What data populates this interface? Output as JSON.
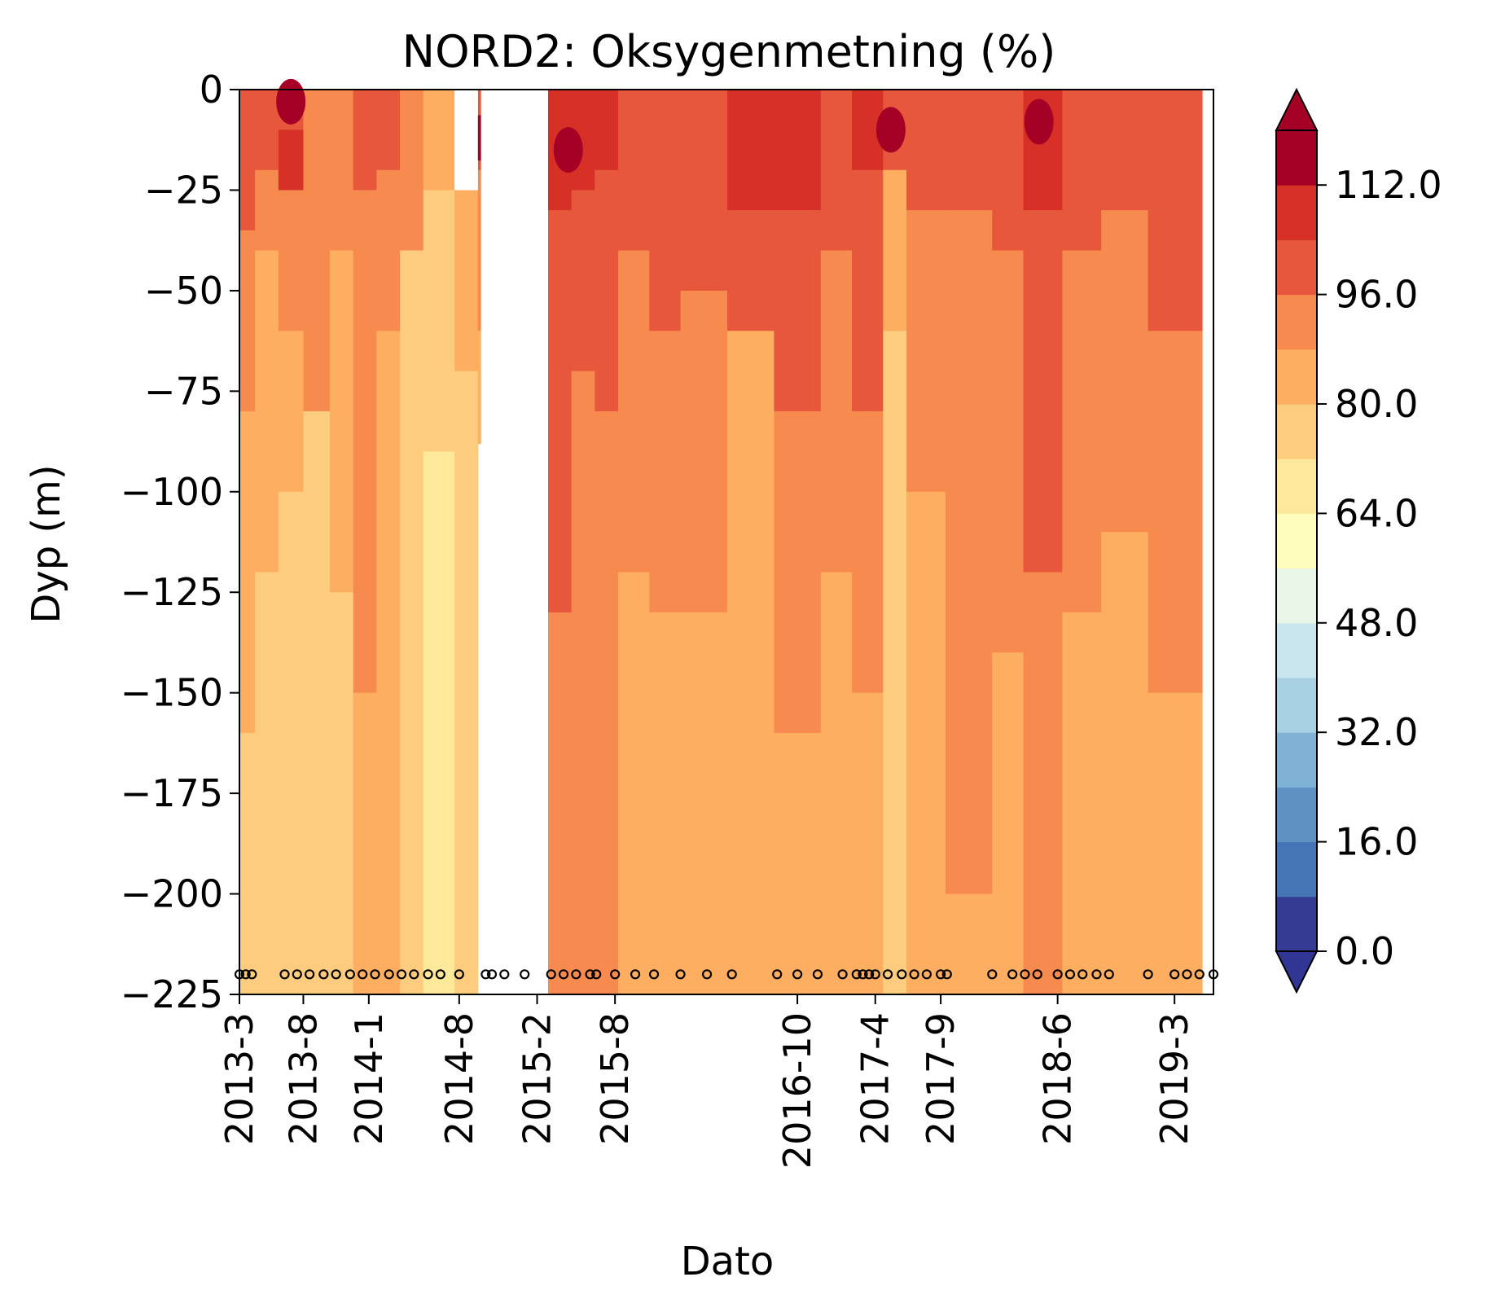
{
  "chart_data": {
    "type": "contour",
    "title": "NORD2: Oksygenmetning (%)",
    "xlabel": "Dato",
    "ylabel": "Dyp (m)",
    "ylim": [
      -225,
      0
    ],
    "y_ticks": [
      "0",
      "−25",
      "−50",
      "−75",
      "−100",
      "−125",
      "−150",
      "−175",
      "−200",
      "−225"
    ],
    "y_tick_values": [
      0,
      -25,
      -50,
      -75,
      -100,
      -125,
      -150,
      -175,
      -200,
      -225
    ],
    "x_ticks": [
      "2013-3",
      "2013-8",
      "2014-1",
      "2014-8",
      "2015-2",
      "2015-8",
      "2016-10",
      "2017-4",
      "2017-9",
      "2018-6",
      "2019-3"
    ],
    "x_tick_values": [
      2013.17,
      2013.58,
      2014.0,
      2014.58,
      2015.08,
      2015.58,
      2016.75,
      2017.25,
      2017.67,
      2018.42,
      2019.17
    ],
    "xlim": [
      2013.17,
      2019.42
    ],
    "sample_marker_depth": -220,
    "sample_dates": [
      2013.17,
      2013.21,
      2013.25,
      2013.46,
      2013.54,
      2013.62,
      2013.71,
      2013.79,
      2013.88,
      2013.96,
      2014.04,
      2014.13,
      2014.21,
      2014.29,
      2014.38,
      2014.46,
      2014.58,
      2014.75,
      2014.79,
      2014.87,
      2015.0,
      2015.17,
      2015.25,
      2015.33,
      2015.42,
      2015.46,
      2015.58,
      2015.71,
      2015.83,
      2016.0,
      2016.17,
      2016.33,
      2016.62,
      2016.75,
      2016.88,
      2017.04,
      2017.13,
      2017.17,
      2017.21,
      2017.25,
      2017.33,
      2017.42,
      2017.5,
      2017.58,
      2017.67,
      2017.71,
      2018.0,
      2018.13,
      2018.21,
      2018.29,
      2018.42,
      2018.5,
      2018.58,
      2018.67,
      2018.75,
      2019.0,
      2019.17,
      2019.25,
      2019.33,
      2019.42
    ],
    "gaps": [
      {
        "x_start": 2014.72,
        "x_end": 2014.9,
        "y_top": 0,
        "y_bottom": -225
      },
      {
        "x_start": 2014.9,
        "x_end": 2015.15,
        "y_top": 0,
        "y_bottom": -225
      },
      {
        "x_start": 2014.55,
        "x_end": 2014.7,
        "y_top": 0,
        "y_bottom": -25
      },
      {
        "x_start": 2019.35,
        "x_end": 2019.42,
        "y_top": 0,
        "y_bottom": -225
      }
    ],
    "colorbar": {
      "levels": [
        0,
        8,
        16,
        24,
        32,
        40,
        48,
        56,
        64,
        72,
        80,
        88,
        96,
        104,
        112
      ],
      "tick_labels": [
        "0.0",
        "16.0",
        "32.0",
        "48.0",
        "64.0",
        "80.0",
        "96.0",
        "112.0"
      ],
      "tick_values": [
        0,
        16,
        32,
        48,
        64,
        80,
        96,
        112
      ],
      "extend": "both",
      "colors": [
        "#353a92",
        "#4575b4",
        "#5f92c3",
        "#80b2d6",
        "#a8d1e4",
        "#c9e6ef",
        "#e9f5e6",
        "#fefcbb",
        "#fee99a",
        "#fdcc7e",
        "#fdae61",
        "#f78b4f",
        "#e6573c",
        "#d73027",
        "#a50026"
      ],
      "under_color": "#313695",
      "over_color": "#a50026"
    },
    "columns": [
      {
        "x_start": 2013.17,
        "x_end": 2013.27,
        "bands": [
          [
            0,
            -5,
            96
          ],
          [
            -5,
            -35,
            96
          ],
          [
            -35,
            -80,
            88
          ],
          [
            -80,
            -160,
            80
          ],
          [
            -160,
            -225,
            72
          ]
        ]
      },
      {
        "x_start": 2013.27,
        "x_end": 2013.42,
        "bands": [
          [
            0,
            -20,
            96
          ],
          [
            -20,
            -40,
            88
          ],
          [
            -40,
            -120,
            80
          ],
          [
            -120,
            -225,
            72
          ]
        ]
      },
      {
        "x_start": 2013.42,
        "x_end": 2013.58,
        "bands": [
          [
            0,
            -10,
            96
          ],
          [
            -10,
            -25,
            104
          ],
          [
            -25,
            -60,
            88
          ],
          [
            -60,
            -100,
            80
          ],
          [
            -100,
            -225,
            72
          ]
        ]
      },
      {
        "x_start": 2013.58,
        "x_end": 2013.75,
        "bands": [
          [
            0,
            -30,
            88
          ],
          [
            -30,
            -80,
            88
          ],
          [
            -80,
            -225,
            72
          ]
        ]
      },
      {
        "x_start": 2013.75,
        "x_end": 2013.9,
        "bands": [
          [
            0,
            -40,
            88
          ],
          [
            -40,
            -125,
            80
          ],
          [
            -125,
            -225,
            72
          ]
        ]
      },
      {
        "x_start": 2013.9,
        "x_end": 2014.05,
        "bands": [
          [
            0,
            -25,
            96
          ],
          [
            -25,
            -150,
            88
          ],
          [
            -150,
            -225,
            80
          ]
        ]
      },
      {
        "x_start": 2014.05,
        "x_end": 2014.2,
        "bands": [
          [
            0,
            -20,
            96
          ],
          [
            -20,
            -60,
            88
          ],
          [
            -60,
            -225,
            80
          ]
        ]
      },
      {
        "x_start": 2014.2,
        "x_end": 2014.35,
        "bands": [
          [
            0,
            -40,
            88
          ],
          [
            -40,
            -225,
            72
          ]
        ]
      },
      {
        "x_start": 2014.35,
        "x_end": 2014.55,
        "bands": [
          [
            0,
            -25,
            80
          ],
          [
            -25,
            -90,
            72
          ],
          [
            -90,
            -225,
            64
          ]
        ]
      },
      {
        "x_start": 2014.55,
        "x_end": 2014.7,
        "bands": [
          [
            -25,
            -70,
            80
          ],
          [
            -70,
            -225,
            72
          ]
        ]
      },
      {
        "x_start": 2014.7,
        "x_end": 2014.72,
        "bands": [
          [
            0,
            -20,
            96
          ],
          [
            -20,
            -60,
            88
          ],
          [
            -60,
            -88,
            80
          ]
        ]
      },
      {
        "x_start": 2015.15,
        "x_end": 2015.3,
        "bands": [
          [
            0,
            -30,
            104
          ],
          [
            -30,
            -130,
            96
          ],
          [
            -130,
            -225,
            88
          ]
        ]
      },
      {
        "x_start": 2015.3,
        "x_end": 2015.45,
        "bands": [
          [
            0,
            -25,
            104
          ],
          [
            -25,
            -70,
            96
          ],
          [
            -70,
            -225,
            88
          ]
        ]
      },
      {
        "x_start": 2015.45,
        "x_end": 2015.6,
        "bands": [
          [
            0,
            -20,
            104
          ],
          [
            -20,
            -80,
            96
          ],
          [
            -80,
            -225,
            88
          ]
        ]
      },
      {
        "x_start": 2015.6,
        "x_end": 2015.8,
        "bands": [
          [
            0,
            -40,
            96
          ],
          [
            -40,
            -120,
            88
          ],
          [
            -120,
            -225,
            80
          ]
        ]
      },
      {
        "x_start": 2015.8,
        "x_end": 2016.0,
        "bands": [
          [
            0,
            -60,
            96
          ],
          [
            -60,
            -130,
            88
          ],
          [
            -130,
            -225,
            80
          ]
        ]
      },
      {
        "x_start": 2016.0,
        "x_end": 2016.3,
        "bands": [
          [
            0,
            -50,
            96
          ],
          [
            -50,
            -130,
            88
          ],
          [
            -130,
            -225,
            80
          ]
        ]
      },
      {
        "x_start": 2016.3,
        "x_end": 2016.6,
        "bands": [
          [
            0,
            -30,
            104
          ],
          [
            -30,
            -60,
            96
          ],
          [
            -60,
            -225,
            80
          ]
        ]
      },
      {
        "x_start": 2016.6,
        "x_end": 2016.9,
        "bands": [
          [
            0,
            -30,
            104
          ],
          [
            -30,
            -80,
            96
          ],
          [
            -80,
            -160,
            88
          ],
          [
            -160,
            -225,
            80
          ]
        ]
      },
      {
        "x_start": 2016.9,
        "x_end": 2017.1,
        "bands": [
          [
            0,
            -40,
            96
          ],
          [
            -40,
            -120,
            88
          ],
          [
            -120,
            -225,
            80
          ]
        ]
      },
      {
        "x_start": 2017.1,
        "x_end": 2017.3,
        "bands": [
          [
            0,
            -20,
            104
          ],
          [
            -20,
            -80,
            96
          ],
          [
            -80,
            -150,
            88
          ],
          [
            -150,
            -225,
            80
          ]
        ]
      },
      {
        "x_start": 2017.3,
        "x_end": 2017.45,
        "bands": [
          [
            0,
            -20,
            96
          ],
          [
            -20,
            -60,
            80
          ],
          [
            -60,
            -225,
            72
          ]
        ]
      },
      {
        "x_start": 2017.45,
        "x_end": 2017.7,
        "bands": [
          [
            0,
            -30,
            96
          ],
          [
            -30,
            -100,
            88
          ],
          [
            -100,
            -225,
            80
          ]
        ]
      },
      {
        "x_start": 2017.7,
        "x_end": 2018.0,
        "bands": [
          [
            0,
            -30,
            96
          ],
          [
            -30,
            -200,
            88
          ],
          [
            -200,
            -225,
            80
          ]
        ]
      },
      {
        "x_start": 2018.0,
        "x_end": 2018.2,
        "bands": [
          [
            0,
            -40,
            96
          ],
          [
            -40,
            -140,
            88
          ],
          [
            -140,
            -225,
            80
          ]
        ]
      },
      {
        "x_start": 2018.2,
        "x_end": 2018.45,
        "bands": [
          [
            0,
            -30,
            104
          ],
          [
            -30,
            -120,
            96
          ],
          [
            -120,
            -225,
            88
          ]
        ]
      },
      {
        "x_start": 2018.45,
        "x_end": 2018.7,
        "bands": [
          [
            0,
            -40,
            96
          ],
          [
            -40,
            -130,
            88
          ],
          [
            -130,
            -225,
            80
          ]
        ]
      },
      {
        "x_start": 2018.7,
        "x_end": 2019.0,
        "bands": [
          [
            0,
            -30,
            96
          ],
          [
            -30,
            -110,
            88
          ],
          [
            -110,
            -225,
            80
          ]
        ]
      },
      {
        "x_start": 2019.0,
        "x_end": 2019.35,
        "bands": [
          [
            0,
            -60,
            96
          ],
          [
            -60,
            -150,
            88
          ],
          [
            -150,
            -225,
            80
          ]
        ]
      }
    ],
    "highlights": [
      {
        "x": 2013.5,
        "y": -3,
        "value": 112
      },
      {
        "x": 2015.28,
        "y": -15,
        "value": 112
      },
      {
        "x": 2017.35,
        "y": -10,
        "value": 112
      },
      {
        "x": 2018.3,
        "y": -8,
        "value": 112
      },
      {
        "x": 2014.72,
        "y": -12,
        "value": 112
      }
    ]
  }
}
